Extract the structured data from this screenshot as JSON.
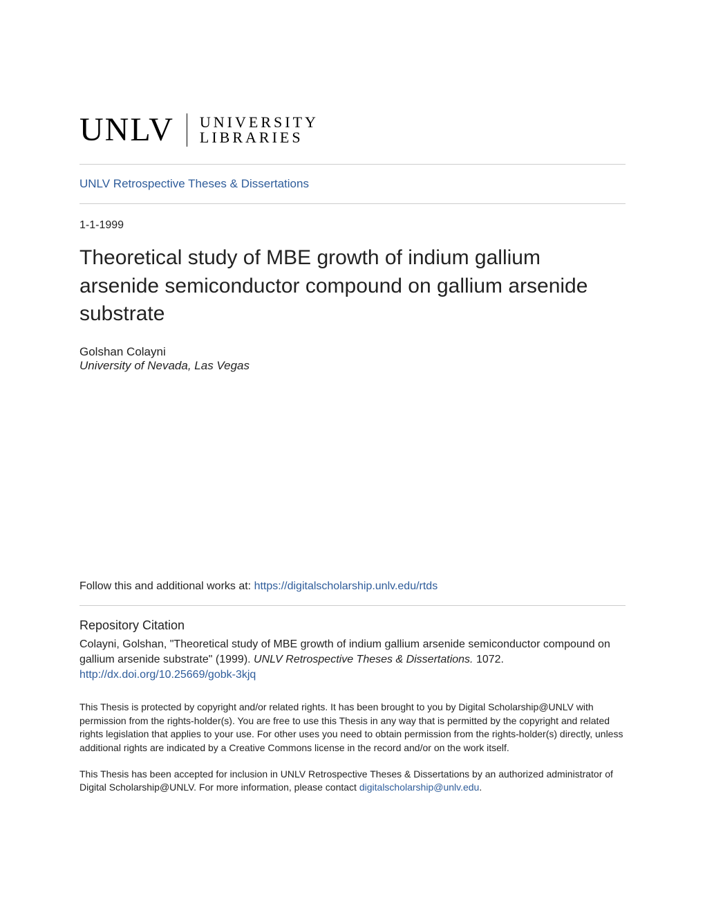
{
  "logo": {
    "unlv": "UNLV",
    "line1": "UNIVERSITY",
    "line2": "LIBRARIES"
  },
  "breadcrumb": {
    "label": "UNLV Retrospective Theses & Dissertations"
  },
  "date": "1-1-1999",
  "title": "Theoretical study of MBE growth of indium gallium arsenide semiconductor compound on gallium arsenide substrate",
  "author": {
    "name": "Golshan Colayni",
    "affiliation": "University of Nevada, Las Vegas"
  },
  "follow": {
    "prefix": "Follow this and additional works at: ",
    "link_text": "https://digitalscholarship.unlv.edu/rtds"
  },
  "citation": {
    "heading": "Repository Citation",
    "text_part1": "Colayni, Golshan, \"Theoretical study of MBE growth of indium gallium arsenide semiconductor compound on gallium arsenide substrate\" (1999). ",
    "text_italic": "UNLV Retrospective Theses & Dissertations.",
    "text_part2": " 1072.",
    "doi": "http://dx.doi.org/10.25669/gobk-3kjq"
  },
  "disclaimer1": "This Thesis is protected by copyright and/or related rights. It has been brought to you by Digital Scholarship@UNLV with permission from the rights-holder(s). You are free to use this Thesis in any way that is permitted by the copyright and related rights legislation that applies to your use. For other uses you need to obtain permission from the rights-holder(s) directly, unless additional rights are indicated by a Creative Commons license in the record and/or on the work itself.",
  "disclaimer2_prefix": "This Thesis has been accepted for inclusion in UNLV Retrospective Theses & Dissertations by an authorized administrator of Digital Scholarship@UNLV. For more information, please contact ",
  "disclaimer2_link": "digitalscholarship@unlv.edu",
  "disclaimer2_suffix": ".",
  "colors": {
    "link": "#2e5c9a",
    "text": "#222222",
    "rule": "#cccccc",
    "background": "#ffffff"
  },
  "typography": {
    "title_fontsize": 30,
    "body_fontsize": 16,
    "small_fontsize": 14,
    "logo_fontsize": 48
  }
}
